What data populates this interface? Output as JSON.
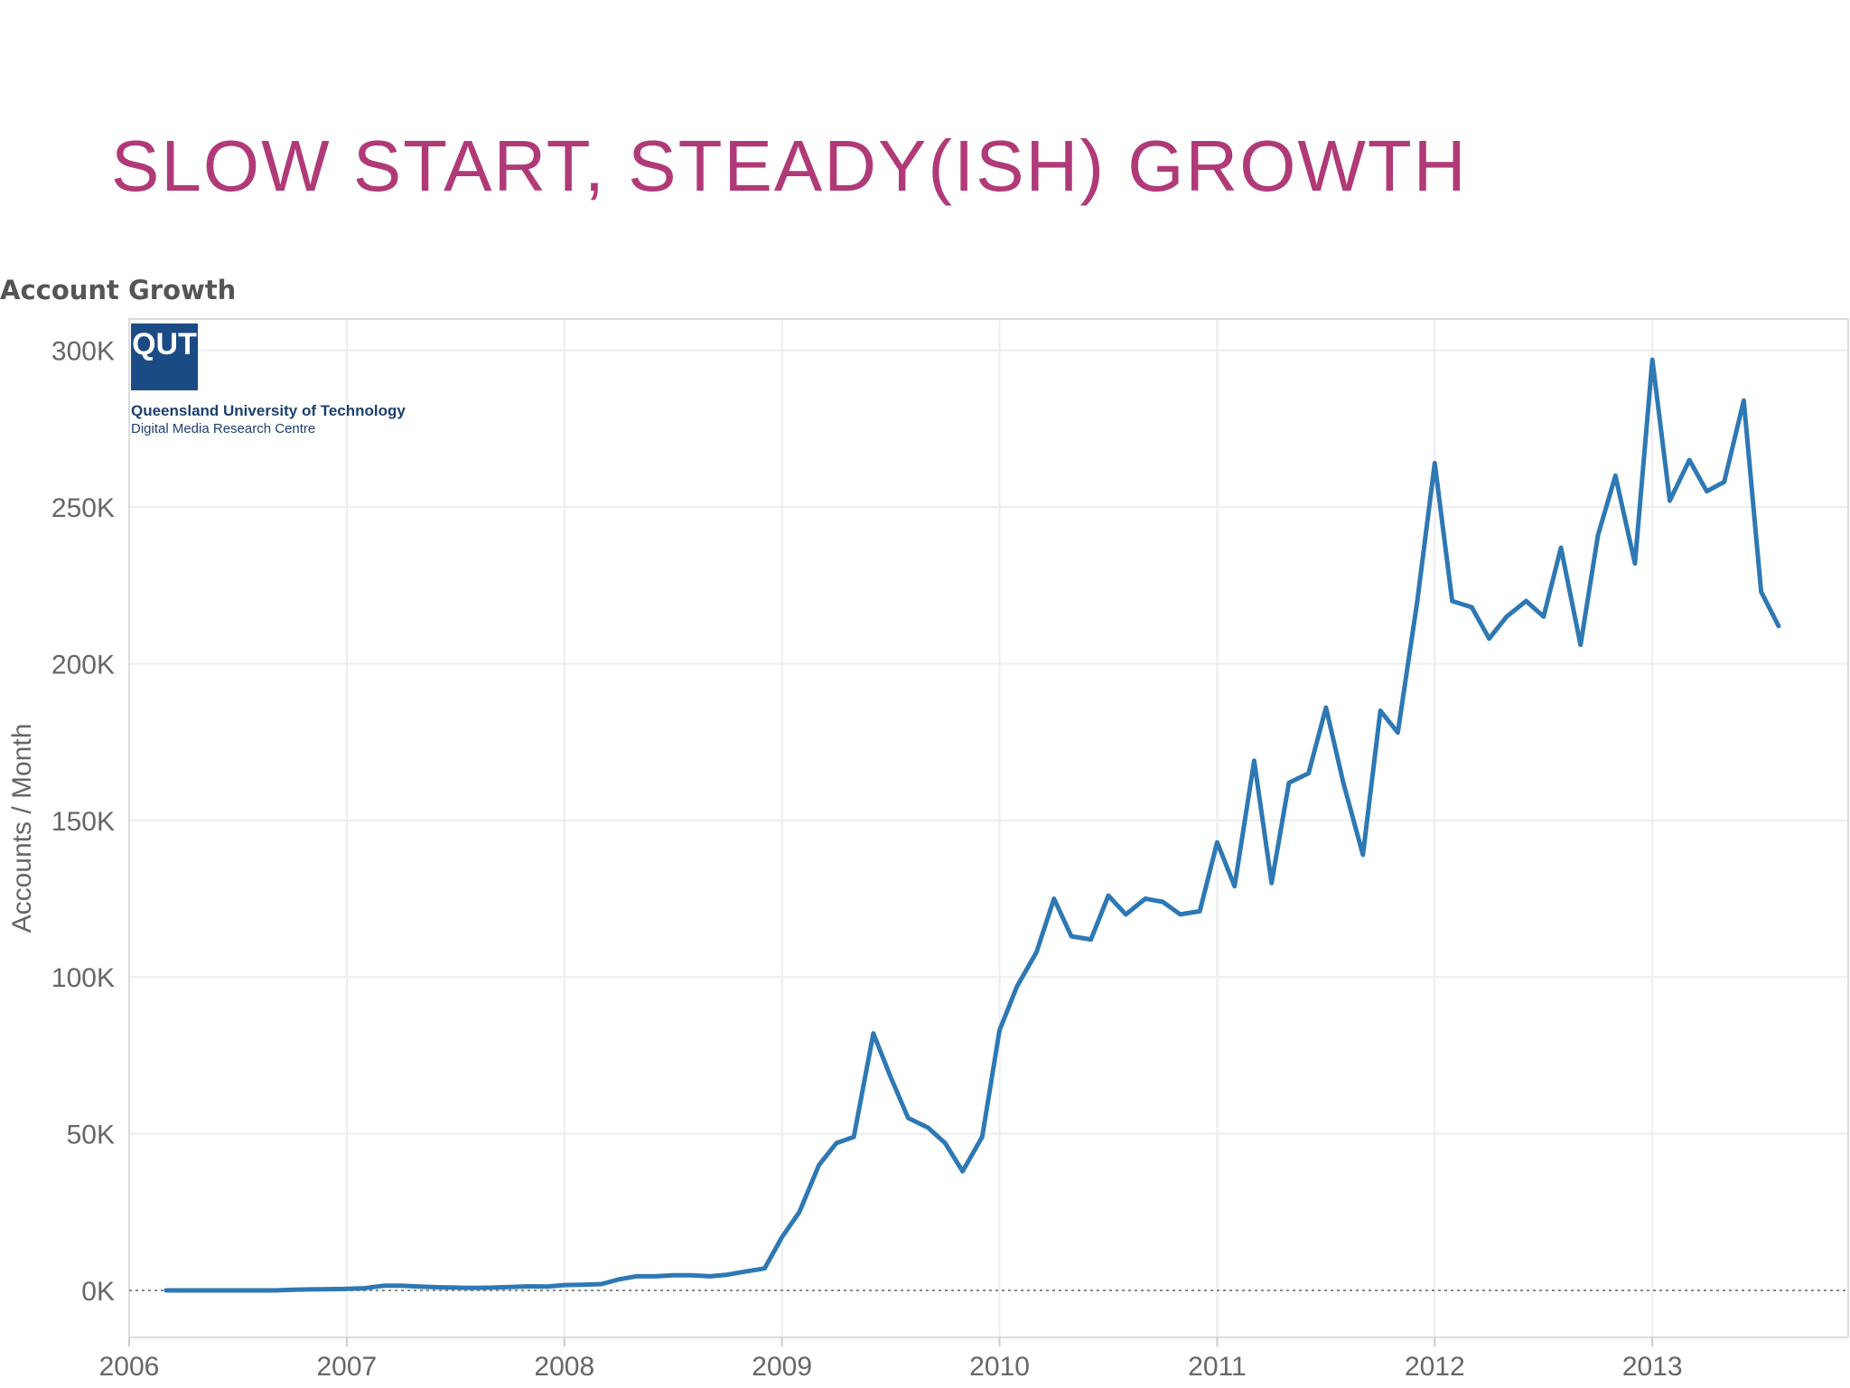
{
  "slide": {
    "title": "SLOW START, STEADY(ISH) GROWTH"
  },
  "logo": {
    "mark": "QUT",
    "line1": "Queensland University of Technology",
    "line2": "Digital Media Research Centre",
    "color": "#1b4b84"
  },
  "chart_data": {
    "type": "line",
    "title": "Account Growth",
    "xlabel": "",
    "ylabel": "Accounts / Month",
    "xlim": [
      2006,
      2013.9
    ],
    "ylim": [
      -15000,
      310000
    ],
    "x_ticks": [
      2006,
      2007,
      2008,
      2009,
      2010,
      2011,
      2012,
      2013
    ],
    "y_ticks": [
      0,
      50000,
      100000,
      150000,
      200000,
      250000,
      300000
    ],
    "y_tick_labels": [
      "0K",
      "50K",
      "100K",
      "150K",
      "200K",
      "250K",
      "300K"
    ],
    "grid": true,
    "line_color": "#2e78b4",
    "series": [
      {
        "x": [
          2006.17,
          2006.25,
          2006.33,
          2006.42,
          2006.5,
          2006.58,
          2006.67,
          2006.75,
          2006.83,
          2006.92,
          2007.0,
          2007.08,
          2007.17,
          2007.25,
          2007.33,
          2007.42,
          2007.5,
          2007.58,
          2007.67,
          2007.75,
          2007.83,
          2007.92,
          2008.0,
          2008.08,
          2008.17,
          2008.25,
          2008.33,
          2008.42,
          2008.5,
          2008.58,
          2008.67,
          2008.75,
          2008.83,
          2008.92,
          2009.0,
          2009.08,
          2009.17,
          2009.25,
          2009.33,
          2009.42,
          2009.5,
          2009.58,
          2009.67,
          2009.75,
          2009.83,
          2009.92,
          2010.0,
          2010.08,
          2010.17,
          2010.25,
          2010.33,
          2010.42,
          2010.5,
          2010.58,
          2010.67,
          2010.75,
          2010.83,
          2010.92,
          2011.0,
          2011.08,
          2011.17,
          2011.25,
          2011.33,
          2011.42,
          2011.5,
          2011.58,
          2011.67,
          2011.75,
          2011.83,
          2011.92,
          2012.0,
          2012.08,
          2012.17,
          2012.25,
          2012.33,
          2012.42,
          2012.5,
          2012.58,
          2012.67,
          2012.75,
          2012.83,
          2012.92,
          2013.0,
          2013.08,
          2013.17,
          2013.25,
          2013.33,
          2013.42,
          2013.5,
          2013.58
        ],
        "y": [
          0,
          0,
          0,
          0,
          0,
          0,
          0,
          200,
          300,
          400,
          500,
          700,
          1500,
          1500,
          1200,
          1000,
          900,
          800,
          900,
          1100,
          1300,
          1200,
          1700,
          1800,
          2000,
          3500,
          4500,
          4500,
          4800,
          4800,
          4500,
          5000,
          6000,
          7000,
          17000,
          25000,
          40000,
          47000,
          49000,
          82000,
          68000,
          55000,
          52000,
          47000,
          38000,
          49000,
          83000,
          97000,
          108000,
          125000,
          113000,
          112000,
          126000,
          120000,
          125000,
          124000,
          120000,
          121000,
          143000,
          129000,
          169000,
          130000,
          162000,
          165000,
          186000,
          162000,
          139000,
          185000,
          178000,
          220000,
          264000,
          220000,
          218000,
          208000,
          215000,
          220000,
          215000,
          237000,
          206000,
          241000,
          260000,
          232000,
          297000,
          252000,
          265000,
          255000,
          258000,
          284000,
          223000,
          212000
        ]
      }
    ]
  }
}
